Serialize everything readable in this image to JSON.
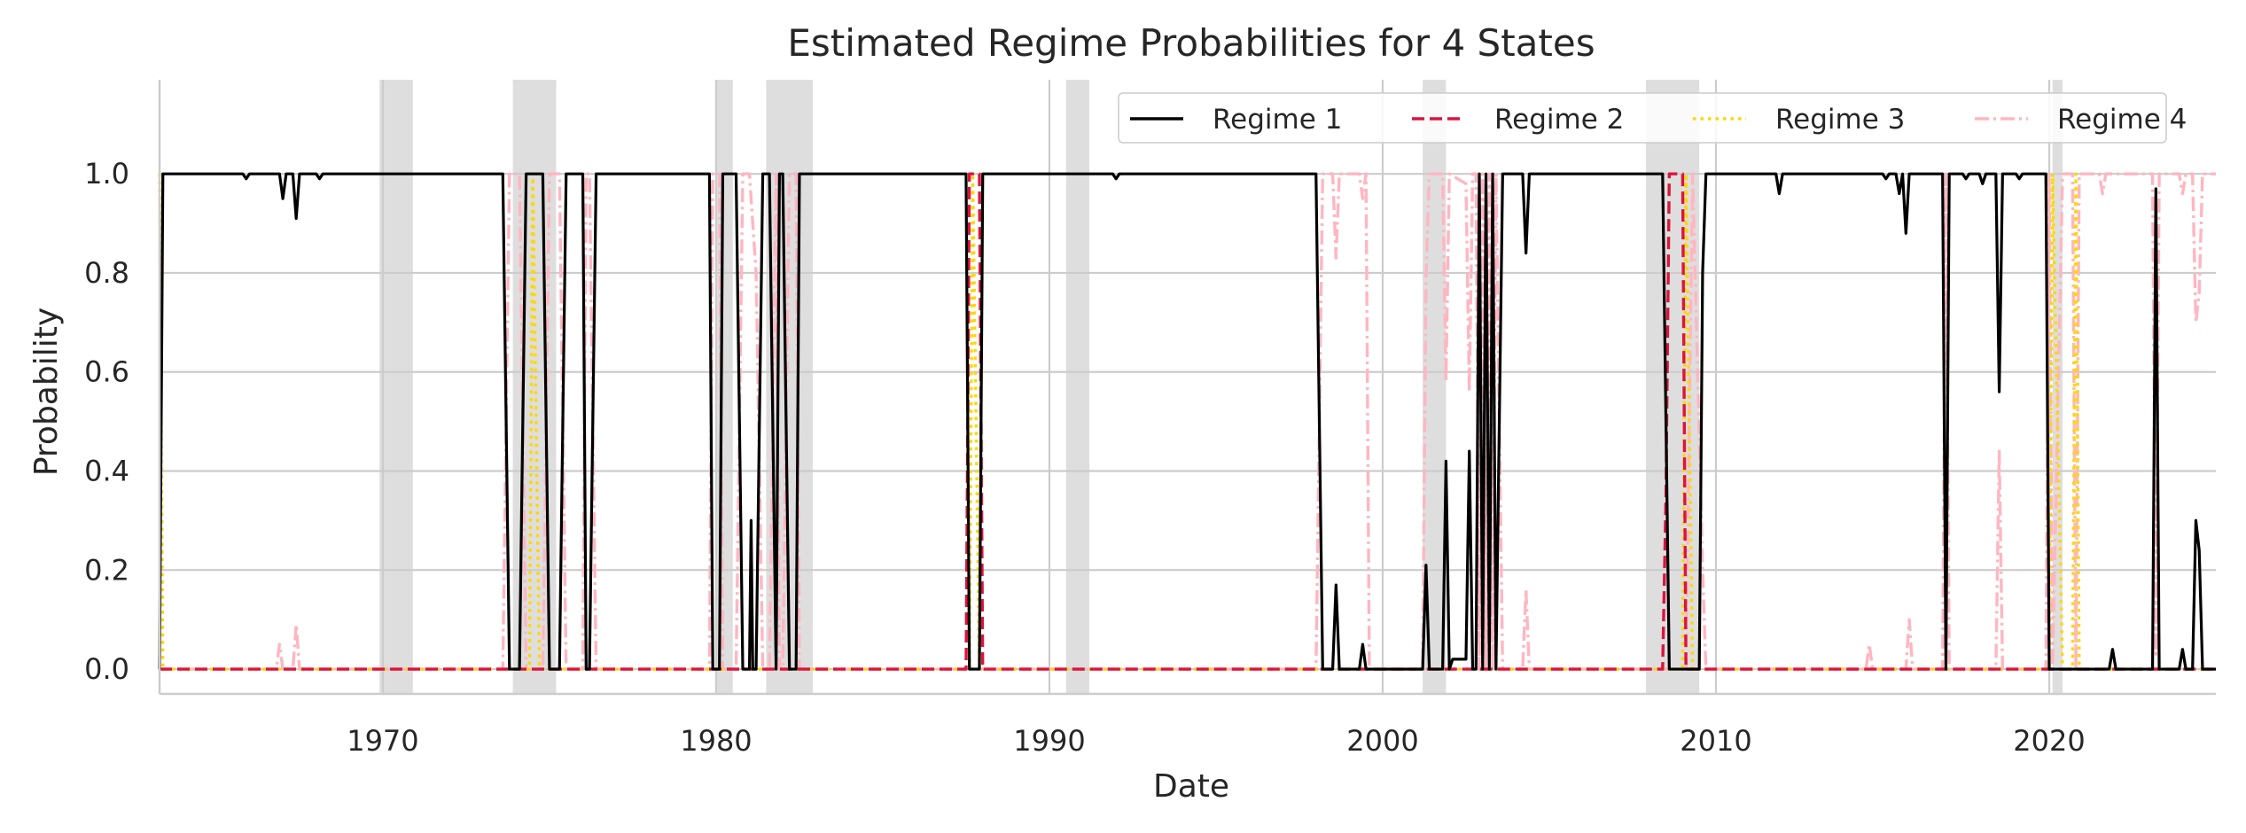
{
  "chart_data": {
    "type": "line",
    "title": "Estimated Regime Probabilities for 4 States",
    "xlabel": "Date",
    "ylabel": "Probability",
    "xlim": [
      1963.3,
      2025.0
    ],
    "ylim": [
      -0.05,
      1.19
    ],
    "x_ticks": [
      1970,
      1980,
      1990,
      2000,
      2010,
      2020
    ],
    "y_ticks": [
      "0.0",
      "0.2",
      "0.4",
      "0.6",
      "0.8",
      "1.0"
    ],
    "grid": true,
    "legend_position": "top-right",
    "recession_shading": [
      [
        1969.9,
        1970.9
      ],
      [
        1973.9,
        1975.2
      ],
      [
        1980.0,
        1980.5
      ],
      [
        1981.5,
        1982.9
      ],
      [
        1990.5,
        1991.2
      ],
      [
        2001.2,
        2001.9
      ],
      [
        2007.9,
        2009.5
      ],
      [
        2020.1,
        2020.4
      ]
    ],
    "series": [
      {
        "name": "Regime 1",
        "color": "#000000",
        "style": "solid",
        "points": [
          [
            1963.3,
            0.0
          ],
          [
            1963.4,
            1.0
          ],
          [
            1965.8,
            1.0
          ],
          [
            1965.9,
            0.99
          ],
          [
            1966.0,
            1.0
          ],
          [
            1966.9,
            1.0
          ],
          [
            1967.0,
            0.95
          ],
          [
            1967.1,
            1.0
          ],
          [
            1967.3,
            1.0
          ],
          [
            1967.4,
            0.91
          ],
          [
            1967.5,
            1.0
          ],
          [
            1968.0,
            1.0
          ],
          [
            1968.1,
            0.99
          ],
          [
            1968.2,
            1.0
          ],
          [
            1973.6,
            1.0
          ],
          [
            1973.8,
            0.0
          ],
          [
            1974.1,
            0.0
          ],
          [
            1974.3,
            1.0
          ],
          [
            1974.8,
            1.0
          ],
          [
            1975.0,
            0.0
          ],
          [
            1975.3,
            0.0
          ],
          [
            1975.5,
            1.0
          ],
          [
            1976.0,
            1.0
          ],
          [
            1976.1,
            0.0
          ],
          [
            1976.2,
            0.0
          ],
          [
            1976.4,
            1.0
          ],
          [
            1979.8,
            1.0
          ],
          [
            1979.9,
            0.0
          ],
          [
            1980.1,
            0.0
          ],
          [
            1980.2,
            1.0
          ],
          [
            1980.6,
            1.0
          ],
          [
            1980.8,
            0.0
          ],
          [
            1981.0,
            0.0
          ],
          [
            1981.05,
            0.3
          ],
          [
            1981.1,
            0.0
          ],
          [
            1981.2,
            0.0
          ],
          [
            1981.4,
            1.0
          ],
          [
            1981.6,
            1.0
          ],
          [
            1981.8,
            0.0
          ],
          [
            1981.9,
            1.0
          ],
          [
            1982.0,
            1.0
          ],
          [
            1982.2,
            0.0
          ],
          [
            1982.4,
            0.0
          ],
          [
            1982.5,
            1.0
          ],
          [
            1987.5,
            1.0
          ],
          [
            1987.6,
            0.0
          ],
          [
            1987.9,
            0.0
          ],
          [
            1988.0,
            1.0
          ],
          [
            1991.9,
            1.0
          ],
          [
            1992.0,
            0.99
          ],
          [
            1992.1,
            1.0
          ],
          [
            1998.0,
            1.0
          ],
          [
            1998.2,
            0.0
          ],
          [
            1998.5,
            0.0
          ],
          [
            1998.6,
            0.17
          ],
          [
            1998.7,
            0.0
          ],
          [
            1999.3,
            0.0
          ],
          [
            1999.4,
            0.05
          ],
          [
            1999.5,
            0.0
          ],
          [
            2001.2,
            0.0
          ],
          [
            2001.3,
            0.21
          ],
          [
            2001.4,
            0.0
          ],
          [
            2001.8,
            0.0
          ],
          [
            2001.9,
            0.42
          ],
          [
            2002.0,
            0.0
          ],
          [
            2002.1,
            0.02
          ],
          [
            2002.5,
            0.02
          ],
          [
            2002.6,
            0.44
          ],
          [
            2002.7,
            0.0
          ],
          [
            2002.8,
            0.0
          ],
          [
            2002.9,
            1.0
          ],
          [
            2003.0,
            0.0
          ],
          [
            2003.1,
            1.0
          ],
          [
            2003.2,
            0.0
          ],
          [
            2003.3,
            1.0
          ],
          [
            2003.4,
            0.0
          ],
          [
            2003.6,
            1.0
          ],
          [
            2004.2,
            1.0
          ],
          [
            2004.3,
            0.84
          ],
          [
            2004.4,
            1.0
          ],
          [
            2008.4,
            1.0
          ],
          [
            2008.6,
            0.0
          ],
          [
            2009.5,
            0.0
          ],
          [
            2009.6,
            0.8
          ],
          [
            2009.7,
            1.0
          ],
          [
            2011.8,
            1.0
          ],
          [
            2011.9,
            0.96
          ],
          [
            2012.0,
            1.0
          ],
          [
            2015.0,
            1.0
          ],
          [
            2015.1,
            0.99
          ],
          [
            2015.2,
            1.0
          ],
          [
            2015.4,
            1.0
          ],
          [
            2015.5,
            0.96
          ],
          [
            2015.6,
            1.0
          ],
          [
            2015.7,
            0.88
          ],
          [
            2015.8,
            1.0
          ],
          [
            2016.8,
            1.0
          ],
          [
            2016.9,
            0.0
          ],
          [
            2017.0,
            1.0
          ],
          [
            2017.4,
            1.0
          ],
          [
            2017.5,
            0.99
          ],
          [
            2017.6,
            1.0
          ],
          [
            2017.9,
            1.0
          ],
          [
            2018.0,
            0.98
          ],
          [
            2018.1,
            1.0
          ],
          [
            2018.4,
            1.0
          ],
          [
            2018.5,
            0.56
          ],
          [
            2018.6,
            1.0
          ],
          [
            2019.0,
            1.0
          ],
          [
            2019.1,
            0.99
          ],
          [
            2019.2,
            1.0
          ],
          [
            2019.9,
            1.0
          ],
          [
            2020.0,
            0.0
          ],
          [
            2020.4,
            0.0
          ],
          [
            2021.8,
            0.0
          ],
          [
            2021.9,
            0.04
          ],
          [
            2022.0,
            0.0
          ],
          [
            2023.1,
            0.0
          ],
          [
            2023.2,
            0.97
          ],
          [
            2023.3,
            0.0
          ],
          [
            2023.9,
            0.0
          ],
          [
            2024.0,
            0.04
          ],
          [
            2024.1,
            0.0
          ],
          [
            2024.3,
            0.0
          ],
          [
            2024.4,
            0.3
          ],
          [
            2024.5,
            0.24
          ],
          [
            2024.6,
            0.0
          ],
          [
            2025.0,
            0.0
          ]
        ]
      },
      {
        "name": "Regime 2",
        "color": "#dc143c",
        "style": "dashed",
        "points": [
          [
            1963.3,
            0.0
          ],
          [
            1987.5,
            0.0
          ],
          [
            1987.6,
            1.0
          ],
          [
            1987.9,
            1.0
          ],
          [
            1988.0,
            0.0
          ],
          [
            2008.4,
            0.0
          ],
          [
            2008.5,
            0.35
          ],
          [
            2008.6,
            1.0
          ],
          [
            2009.0,
            1.0
          ],
          [
            2009.1,
            0.0
          ],
          [
            2025.0,
            0.0
          ]
        ]
      },
      {
        "name": "Regime 3",
        "color": "#ffd700",
        "style": "dotted",
        "points": [
          [
            1963.3,
            1.0
          ],
          [
            1963.4,
            0.0
          ],
          [
            1974.4,
            0.0
          ],
          [
            1974.5,
            1.0
          ],
          [
            1974.7,
            0.0
          ],
          [
            1987.6,
            0.0
          ],
          [
            1987.7,
            1.0
          ],
          [
            1987.9,
            0.0
          ],
          [
            2009.0,
            0.0
          ],
          [
            2009.1,
            1.0
          ],
          [
            2009.3,
            0.0
          ],
          [
            2020.0,
            0.0
          ],
          [
            2020.1,
            1.0
          ],
          [
            2020.4,
            0.0
          ],
          [
            2020.7,
            0.0
          ],
          [
            2020.8,
            1.0
          ],
          [
            2020.9,
            0.0
          ],
          [
            2025.0,
            0.0
          ]
        ]
      },
      {
        "name": "Regime 4",
        "color": "#ffb6c1",
        "style": "dashdot",
        "points": [
          [
            1963.3,
            0.0
          ],
          [
            1966.8,
            0.0
          ],
          [
            1966.9,
            0.05
          ],
          [
            1967.0,
            0.0
          ],
          [
            1967.3,
            0.0
          ],
          [
            1967.4,
            0.09
          ],
          [
            1967.5,
            0.0
          ],
          [
            1973.6,
            0.0
          ],
          [
            1973.8,
            1.0
          ],
          [
            1974.1,
            1.0
          ],
          [
            1974.3,
            0.0
          ],
          [
            1974.8,
            0.0
          ],
          [
            1975.0,
            1.0
          ],
          [
            1975.3,
            1.0
          ],
          [
            1975.5,
            0.0
          ],
          [
            1976.0,
            0.0
          ],
          [
            1976.1,
            1.0
          ],
          [
            1976.2,
            1.0
          ],
          [
            1976.4,
            0.0
          ],
          [
            1979.8,
            0.0
          ],
          [
            1979.9,
            1.0
          ],
          [
            1980.1,
            1.0
          ],
          [
            1980.2,
            0.0
          ],
          [
            1980.6,
            0.0
          ],
          [
            1980.8,
            1.0
          ],
          [
            1981.0,
            1.0
          ],
          [
            1981.2,
            0.8
          ],
          [
            1981.4,
            0.0
          ],
          [
            1981.6,
            0.0
          ],
          [
            1981.8,
            1.0
          ],
          [
            1981.9,
            0.0
          ],
          [
            1982.0,
            0.0
          ],
          [
            1982.2,
            1.0
          ],
          [
            1982.4,
            1.0
          ],
          [
            1982.5,
            0.0
          ],
          [
            1998.0,
            0.0
          ],
          [
            1998.2,
            1.0
          ],
          [
            1998.5,
            1.0
          ],
          [
            1998.6,
            0.83
          ],
          [
            1998.7,
            1.0
          ],
          [
            1999.3,
            1.0
          ],
          [
            1999.4,
            0.95
          ],
          [
            1999.5,
            1.0
          ],
          [
            1999.6,
            0.0
          ],
          [
            2001.2,
            0.0
          ],
          [
            2001.3,
            0.79
          ],
          [
            2001.4,
            1.0
          ],
          [
            2001.8,
            1.0
          ],
          [
            2001.9,
            0.58
          ],
          [
            2002.0,
            1.0
          ],
          [
            2002.5,
            0.98
          ],
          [
            2002.6,
            0.56
          ],
          [
            2002.7,
            1.0
          ],
          [
            2002.8,
            1.0
          ],
          [
            2002.9,
            0.0
          ],
          [
            2003.0,
            1.0
          ],
          [
            2003.1,
            0.0
          ],
          [
            2003.2,
            1.0
          ],
          [
            2003.3,
            0.0
          ],
          [
            2003.4,
            1.0
          ],
          [
            2003.6,
            0.0
          ],
          [
            2004.2,
            0.0
          ],
          [
            2004.3,
            0.16
          ],
          [
            2004.4,
            0.0
          ],
          [
            2009.1,
            0.0
          ],
          [
            2009.3,
            1.0
          ],
          [
            2009.6,
            0.2
          ],
          [
            2009.7,
            0.0
          ],
          [
            2014.5,
            0.0
          ],
          [
            2014.6,
            0.05
          ],
          [
            2014.7,
            0.0
          ],
          [
            2015.7,
            0.0
          ],
          [
            2015.8,
            0.1
          ],
          [
            2015.9,
            0.0
          ],
          [
            2016.8,
            0.0
          ],
          [
            2016.9,
            1.0
          ],
          [
            2017.0,
            0.0
          ],
          [
            2018.4,
            0.0
          ],
          [
            2018.5,
            0.44
          ],
          [
            2018.6,
            0.0
          ],
          [
            2019.9,
            0.0
          ],
          [
            2020.0,
            1.0
          ],
          [
            2020.1,
            0.0
          ],
          [
            2020.4,
            1.0
          ],
          [
            2020.7,
            1.0
          ],
          [
            2020.8,
            0.0
          ],
          [
            2020.9,
            1.0
          ],
          [
            2021.5,
            1.0
          ],
          [
            2021.6,
            0.96
          ],
          [
            2021.7,
            1.0
          ],
          [
            2023.1,
            1.0
          ],
          [
            2023.2,
            0.03
          ],
          [
            2023.3,
            1.0
          ],
          [
            2023.9,
            1.0
          ],
          [
            2024.0,
            0.96
          ],
          [
            2024.1,
            1.0
          ],
          [
            2024.3,
            1.0
          ],
          [
            2024.4,
            0.7
          ],
          [
            2024.5,
            0.76
          ],
          [
            2024.6,
            1.0
          ],
          [
            2025.0,
            1.0
          ]
        ]
      }
    ]
  }
}
